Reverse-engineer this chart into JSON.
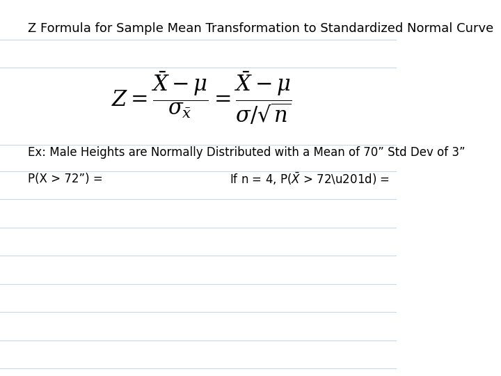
{
  "title": "Z Formula for Sample Mean Transformation to Standardized Normal Curve",
  "formula_latex": "$Z = \\dfrac{\\bar{X} - \\mu}{\\sigma_{\\bar{x}}} = \\dfrac{\\bar{X} - \\mu}{\\sigma / \\sqrt{n}}$",
  "example_text": "Ex: Male Heights are Normally Distributed with a Mean of 70” Std Dev of 3”",
  "prob_left": "P(X > 72”) =",
  "prob_right": "If n = 4, P($\\bar{X}$ > 72”) =",
  "bg_color": "#ffffff",
  "line_color": "#c8d8e8",
  "text_color": "#000000",
  "title_fontsize": 13,
  "formula_fontsize": 18,
  "body_fontsize": 12,
  "num_lines": 9
}
